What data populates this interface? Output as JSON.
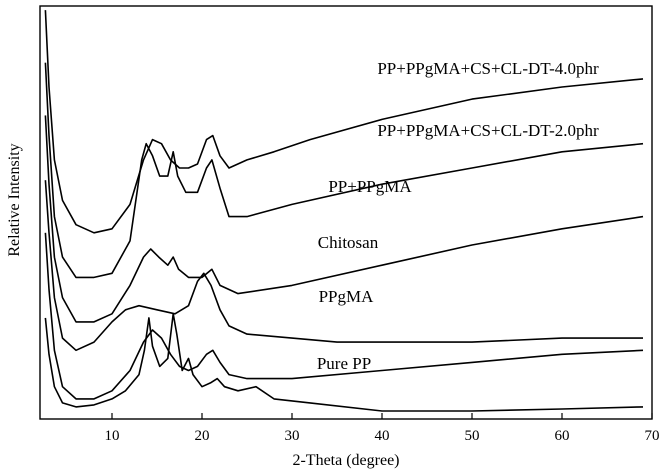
{
  "chart_data": {
    "type": "line",
    "title": "",
    "xlabel": "2-Theta (degree)",
    "ylabel": "Relative Intensity",
    "xlim": [
      2,
      70
    ],
    "x_ticks": [
      10,
      20,
      30,
      40,
      50,
      60,
      70
    ],
    "y_ticks_shown": false,
    "grid": false,
    "legend": "inline labels above each curve",
    "series": [
      {
        "name": "PP+PPgMA+CS+CL-DT-4.0phr",
        "points": [
          [
            2.6,
            99
          ],
          [
            3.0,
            80
          ],
          [
            3.6,
            62
          ],
          [
            4.5,
            52
          ],
          [
            6,
            46
          ],
          [
            8,
            44
          ],
          [
            10,
            45
          ],
          [
            12,
            51
          ],
          [
            13.5,
            62
          ],
          [
            14.5,
            67
          ],
          [
            15.5,
            66
          ],
          [
            16.5,
            62
          ],
          [
            17.5,
            60
          ],
          [
            18.5,
            60
          ],
          [
            19.5,
            61
          ],
          [
            20.5,
            67
          ],
          [
            21.2,
            68
          ],
          [
            22,
            63
          ],
          [
            23,
            60
          ],
          [
            25,
            62
          ],
          [
            28,
            64
          ],
          [
            32,
            67
          ],
          [
            40,
            72
          ],
          [
            50,
            77
          ],
          [
            60,
            80
          ],
          [
            69,
            82
          ]
        ]
      },
      {
        "name": "PP+PPgMA+CS+CL-DT-2.0phr",
        "points": [
          [
            2.6,
            86
          ],
          [
            3.0,
            68
          ],
          [
            3.6,
            48
          ],
          [
            4.5,
            38
          ],
          [
            6,
            33
          ],
          [
            8,
            33
          ],
          [
            10,
            34
          ],
          [
            12,
            42
          ],
          [
            13.3,
            62
          ],
          [
            13.8,
            66
          ],
          [
            14.5,
            63
          ],
          [
            15.3,
            58
          ],
          [
            16.2,
            58
          ],
          [
            16.8,
            64
          ],
          [
            17.3,
            58
          ],
          [
            18.2,
            54
          ],
          [
            19.5,
            54
          ],
          [
            20.5,
            60
          ],
          [
            21.1,
            62
          ],
          [
            22,
            55
          ],
          [
            23,
            48
          ],
          [
            25,
            48
          ],
          [
            30,
            51
          ],
          [
            40,
            56
          ],
          [
            50,
            60
          ],
          [
            60,
            64
          ],
          [
            69,
            66
          ]
        ]
      },
      {
        "name": "PP+PPgMA",
        "points": [
          [
            2.6,
            73
          ],
          [
            3.0,
            56
          ],
          [
            3.6,
            38
          ],
          [
            4.5,
            28
          ],
          [
            6,
            22
          ],
          [
            8,
            22
          ],
          [
            10,
            24
          ],
          [
            12,
            31
          ],
          [
            13.5,
            38
          ],
          [
            14.3,
            40
          ],
          [
            15.2,
            38
          ],
          [
            16.2,
            36
          ],
          [
            16.8,
            38
          ],
          [
            17.4,
            35
          ],
          [
            18.5,
            33
          ],
          [
            20,
            33
          ],
          [
            21.1,
            35
          ],
          [
            22,
            31
          ],
          [
            24,
            29
          ],
          [
            30,
            31
          ],
          [
            40,
            36
          ],
          [
            50,
            41
          ],
          [
            60,
            45
          ],
          [
            69,
            48
          ]
        ]
      },
      {
        "name": "Chitosan",
        "points": [
          [
            2.6,
            57
          ],
          [
            3.0,
            44
          ],
          [
            3.6,
            28
          ],
          [
            4.5,
            18
          ],
          [
            6,
            15
          ],
          [
            8,
            17
          ],
          [
            10,
            22
          ],
          [
            11.5,
            25
          ],
          [
            13,
            26
          ],
          [
            15,
            25
          ],
          [
            17,
            24
          ],
          [
            18.5,
            26
          ],
          [
            19.5,
            32
          ],
          [
            20.2,
            34
          ],
          [
            21,
            31
          ],
          [
            22,
            25
          ],
          [
            23,
            21
          ],
          [
            25,
            19
          ],
          [
            30,
            18
          ],
          [
            35,
            17
          ],
          [
            40,
            17
          ],
          [
            50,
            17
          ],
          [
            60,
            18
          ],
          [
            69,
            18
          ]
        ]
      },
      {
        "name": "PPgMA",
        "points": [
          [
            2.6,
            44
          ],
          [
            3.0,
            30
          ],
          [
            3.6,
            15
          ],
          [
            4.5,
            6
          ],
          [
            6,
            3
          ],
          [
            8,
            3
          ],
          [
            10,
            5
          ],
          [
            12,
            10
          ],
          [
            13.5,
            17
          ],
          [
            14.5,
            20
          ],
          [
            15.5,
            18
          ],
          [
            16.5,
            14
          ],
          [
            17.5,
            11
          ],
          [
            18.5,
            10
          ],
          [
            19.5,
            11
          ],
          [
            20.5,
            14
          ],
          [
            21.2,
            15
          ],
          [
            22,
            12
          ],
          [
            23,
            9
          ],
          [
            25,
            8
          ],
          [
            30,
            8
          ],
          [
            40,
            10
          ],
          [
            50,
            12
          ],
          [
            60,
            14
          ],
          [
            69,
            15
          ]
        ]
      },
      {
        "name": "Pure PP",
        "points": [
          [
            2.6,
            23
          ],
          [
            3.0,
            14
          ],
          [
            3.6,
            6
          ],
          [
            4.5,
            2
          ],
          [
            6,
            1
          ],
          [
            8,
            1.5
          ],
          [
            10,
            3
          ],
          [
            11.5,
            5
          ],
          [
            13,
            9
          ],
          [
            13.6,
            15
          ],
          [
            14.1,
            23
          ],
          [
            14.5,
            16
          ],
          [
            15.3,
            11
          ],
          [
            16.2,
            13
          ],
          [
            16.8,
            24
          ],
          [
            17.2,
            19
          ],
          [
            17.8,
            10
          ],
          [
            18.5,
            13
          ],
          [
            19,
            9
          ],
          [
            20,
            6
          ],
          [
            21,
            7
          ],
          [
            21.7,
            8
          ],
          [
            22.5,
            6
          ],
          [
            24,
            5
          ],
          [
            26,
            6
          ],
          [
            28,
            3
          ],
          [
            32,
            2
          ],
          [
            40,
            0
          ],
          [
            50,
            0
          ],
          [
            60,
            0.5
          ],
          [
            69,
            1
          ]
        ]
      }
    ]
  }
}
